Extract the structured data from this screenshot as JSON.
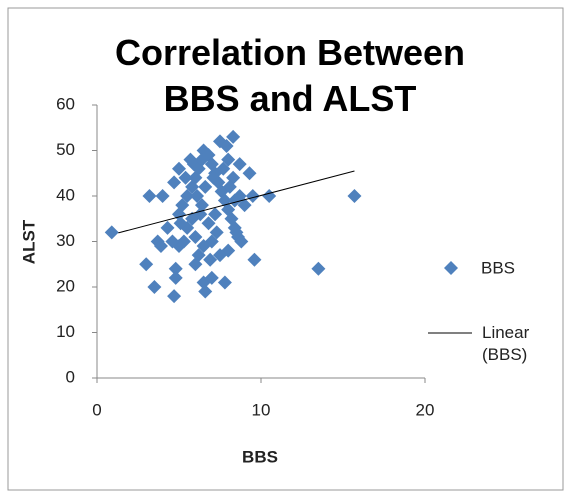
{
  "chart_data": {
    "type": "scatter",
    "title": "Correlation Between BBS and ALST",
    "x_label": "BBS",
    "y_label": "ALST",
    "xlim": [
      0,
      20
    ],
    "xticks": [
      0,
      10,
      20
    ],
    "ylim": [
      0,
      60
    ],
    "yticks": [
      0,
      10,
      20,
      30,
      40,
      50,
      60
    ],
    "grid": false,
    "legend": "right",
    "series": [
      {
        "name": "BBS",
        "color": "#4f81bd",
        "x": [
          0.9,
          3,
          3.5,
          3.2,
          4,
          4.7,
          4.8,
          4.8,
          6.6,
          6.5,
          7,
          7.8,
          9.6,
          13.5,
          15.7,
          10.5,
          9.5,
          9.3,
          8.3,
          7.5,
          8.7,
          6.5,
          5.9,
          4.7,
          5,
          3.7,
          3.9,
          6,
          4.3,
          5,
          5.2,
          5.5,
          5.8,
          6,
          6.2,
          6.4,
          6.8,
          7,
          7.2,
          7.4,
          7.6,
          7.8,
          8,
          8.2,
          8.4,
          8.6,
          8.8,
          8.5,
          7,
          6.5,
          6,
          5.5,
          5.3,
          5,
          4.6,
          6.8,
          7.2,
          6.4,
          6.1,
          6.6,
          7.1,
          7.7,
          8,
          8.3,
          8.7,
          9,
          8,
          7.5,
          7.3,
          6.9,
          6.2,
          5.8,
          5.4,
          5.7,
          7.9,
          6.3,
          5.1,
          8.1,
          8.4
        ],
        "values": [
          32,
          25,
          20,
          40,
          40,
          18,
          24,
          22,
          19,
          21,
          22,
          21,
          26,
          24,
          40,
          40,
          40,
          45,
          53,
          52,
          47,
          50,
          47,
          43,
          46,
          30,
          29,
          25,
          33,
          36,
          38,
          40,
          42,
          44,
          46,
          48,
          49,
          47,
          45,
          43,
          41,
          39,
          37,
          35,
          33,
          31,
          30,
          32,
          30,
          29,
          31,
          33,
          30,
          29,
          30,
          34,
          36,
          38,
          40,
          42,
          44,
          46,
          48,
          44,
          40,
          38,
          28,
          27,
          32,
          26,
          27,
          35,
          44,
          48,
          51,
          36,
          34,
          42,
          39
        ]
      }
    ],
    "trendline": {
      "name": "Linear (BBS)",
      "color": "#000000",
      "x": [
        1.3,
        15.7
      ],
      "values": [
        31.9,
        45.5
      ]
    }
  }
}
